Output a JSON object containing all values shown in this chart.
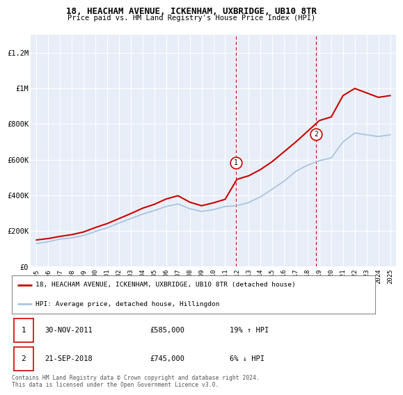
{
  "title": "18, HEACHAM AVENUE, ICKENHAM, UXBRIDGE, UB10 8TR",
  "subtitle": "Price paid vs. HM Land Registry's House Price Index (HPI)",
  "ylabel_ticks": [
    "£0",
    "£200K",
    "£400K",
    "£600K",
    "£800K",
    "£1M",
    "£1.2M"
  ],
  "ytick_values": [
    0,
    200000,
    400000,
    600000,
    800000,
    1000000,
    1200000
  ],
  "ylim": [
    0,
    1300000
  ],
  "years": [
    1995,
    1996,
    1997,
    1998,
    1999,
    2000,
    2001,
    2002,
    2003,
    2004,
    2005,
    2006,
    2007,
    2008,
    2009,
    2010,
    2011,
    2012,
    2013,
    2014,
    2015,
    2016,
    2017,
    2018,
    2019,
    2020,
    2021,
    2022,
    2023,
    2024,
    2025
  ],
  "hpi_values": [
    130000,
    140000,
    155000,
    162000,
    175000,
    198000,
    218000,
    245000,
    270000,
    295000,
    315000,
    338000,
    352000,
    325000,
    310000,
    320000,
    338000,
    342000,
    360000,
    392000,
    435000,
    480000,
    535000,
    570000,
    595000,
    610000,
    700000,
    750000,
    740000,
    730000,
    740000
  ],
  "red_line_values": [
    150000,
    158000,
    170000,
    180000,
    195000,
    220000,
    242000,
    270000,
    298000,
    328000,
    350000,
    380000,
    398000,
    362000,
    342000,
    358000,
    378000,
    490000,
    510000,
    545000,
    590000,
    645000,
    700000,
    760000,
    820000,
    840000,
    960000,
    1000000,
    975000,
    950000,
    960000
  ],
  "sale1_x": 2011.92,
  "sale1_y": 585000,
  "sale2_x": 2018.73,
  "sale2_y": 745000,
  "sale1_vline_x": 2011.92,
  "sale2_vline_x": 2018.73,
  "red_color": "#cc0000",
  "blue_color": "#a8c4e0",
  "bg_color": "#e8eef8",
  "legend_label_red": "18, HEACHAM AVENUE, ICKENHAM, UXBRIDGE, UB10 8TR (detached house)",
  "legend_label_blue": "HPI: Average price, detached house, Hillingdon",
  "footer": "Contains HM Land Registry data © Crown copyright and database right 2024.\nThis data is licensed under the Open Government Licence v3.0.",
  "xtick_years": [
    1995,
    1996,
    1997,
    1998,
    1999,
    2000,
    2001,
    2002,
    2003,
    2004,
    2005,
    2006,
    2007,
    2008,
    2009,
    2010,
    2011,
    2012,
    2013,
    2014,
    2015,
    2016,
    2017,
    2018,
    2019,
    2020,
    2021,
    2022,
    2023,
    2024,
    2025
  ]
}
